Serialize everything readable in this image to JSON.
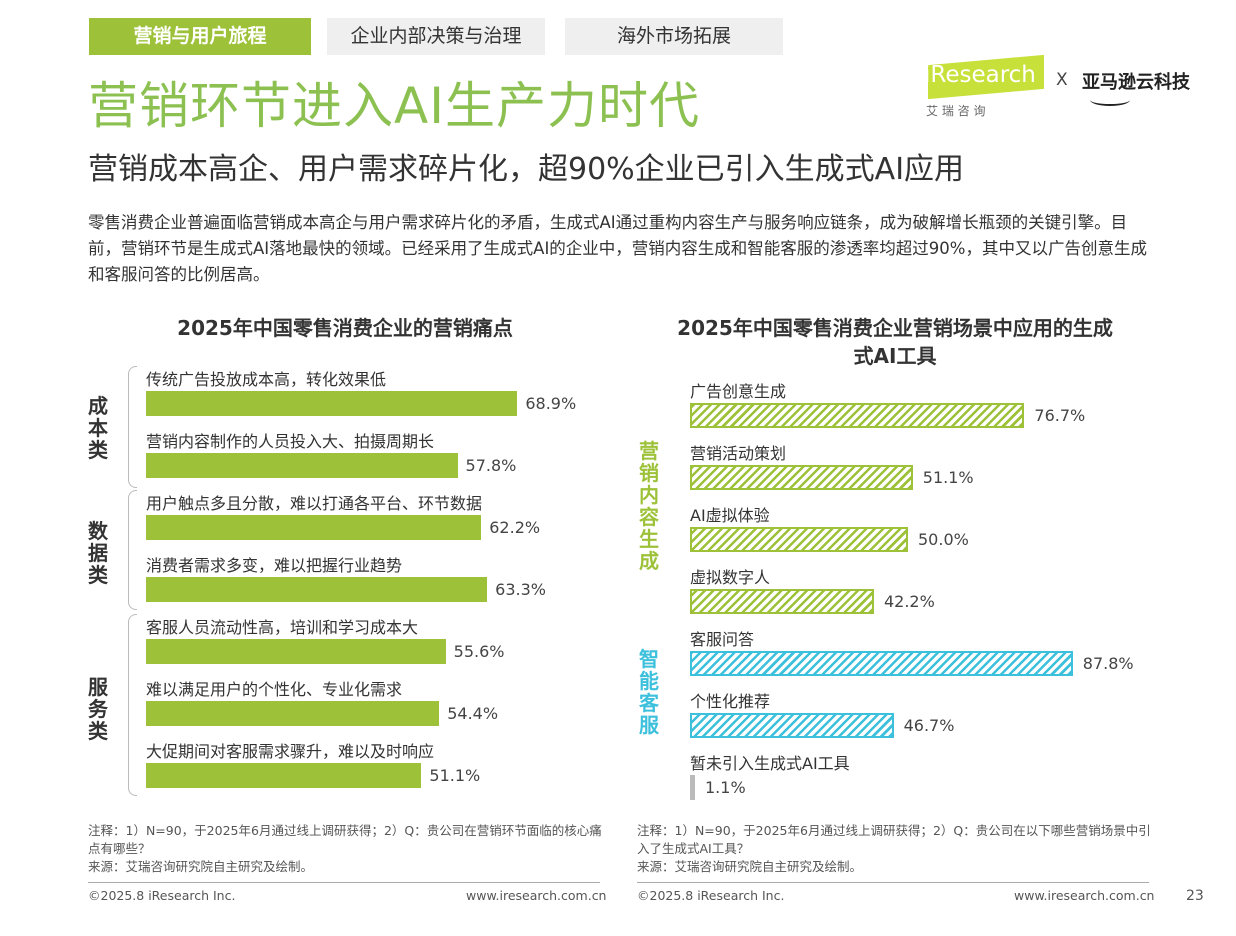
{
  "tabs": [
    {
      "label": "营销与用户旅程",
      "active": true
    },
    {
      "label": "企业内部决策与治理"
    },
    {
      "label": "海外市场拓展"
    }
  ],
  "logo": {
    "brand": "iResearch",
    "brand_cn": "艾 瑞 咨 询",
    "x": "X",
    "partner": "亚马逊云科技"
  },
  "title": "营销环节进入AI生产力时代",
  "subtitle": "营销成本高企、用户需求碎片化，超90%企业已引入生成式AI应用",
  "body": "零售消费企业普遍面临营销成本高企与用户需求碎片化的矛盾，生成式AI通过重构内容生产与服务响应链条，成为破解增长瓶颈的关键引擎。目前，营销环节是生成式AI落地最快的领域。已经采用了生成式AI的企业中，营销内容生成和智能客服的渗透率均超过90%，其中又以广告创意生成和客服问答的比例居高。",
  "colors": {
    "green": "#9dc23a",
    "cyan": "#3cc0dc",
    "gray": "#bbbbbb",
    "title_green": "#8cc152"
  },
  "chart_data": [
    {
      "type": "bar",
      "orientation": "horizontal",
      "title": "2025年中国零售消费企业的营销痛点",
      "unit": "%",
      "groups": [
        {
          "name": "成本类",
          "color": "#9dc23a"
        },
        {
          "name": "数据类",
          "color": "#9dc23a"
        },
        {
          "name": "服务类",
          "color": "#9dc23a"
        }
      ],
      "categories": [
        "传统广告投放成本高，转化效果低",
        "营销内容制作的人员投入大、拍摄周期长",
        "用户触点多且分散，难以打通各平台、环节数据",
        "消费者需求多变，难以把握行业趋势",
        "客服人员流动性高，培训和学习成本大",
        "难以满足用户的个性化、专业化需求",
        "大促期间对客服需求骤升，难以及时响应"
      ],
      "group_of": [
        0,
        0,
        1,
        1,
        2,
        2,
        2
      ],
      "values": [
        68.9,
        57.8,
        62.2,
        63.3,
        55.6,
        54.4,
        51.1
      ],
      "labels": [
        "68.9%",
        "57.8%",
        "62.2%",
        "63.3%",
        "55.6%",
        "54.4%",
        "51.1%"
      ],
      "note": "注释：1）N=90，于2025年6月通过线上调研获得；2）Q：贵公司在营销环节面临的核心痛点有哪些？",
      "source": "来源：艾瑞咨询研究院自主研究及绘制。"
    },
    {
      "type": "bar",
      "orientation": "horizontal",
      "title": "2025年中国零售消费企业营销场景中应用的生成式AI工具",
      "unit": "%",
      "pattern": "hatched",
      "groups": [
        {
          "name": "营销内容生成",
          "color": "#9dc23a"
        },
        {
          "name": "智能客服",
          "color": "#3cc0dc"
        }
      ],
      "categories": [
        "广告创意生成",
        "营销活动策划",
        "AI虚拟体验",
        "虚拟数字人",
        "客服问答",
        "个性化推荐",
        "暂未引入生成式AI工具"
      ],
      "group_of": [
        0,
        0,
        0,
        0,
        1,
        1,
        null
      ],
      "values": [
        76.7,
        51.1,
        50.0,
        42.2,
        87.8,
        46.7,
        1.1
      ],
      "labels": [
        "76.7%",
        "51.1%",
        "50.0%",
        "42.2%",
        "87.8%",
        "46.7%",
        "1.1%"
      ],
      "note": "注释：1）N=90，于2025年6月通过线上调研获得；2）Q：贵公司在以下哪些营销场景中引入了生成式AI工具？",
      "source": "来源：艾瑞咨询研究院自主研究及绘制。"
    }
  ],
  "footer": {
    "copyright": "©2025.8 iResearch Inc.",
    "url": "www.iresearch.com.cn",
    "page": "23"
  }
}
